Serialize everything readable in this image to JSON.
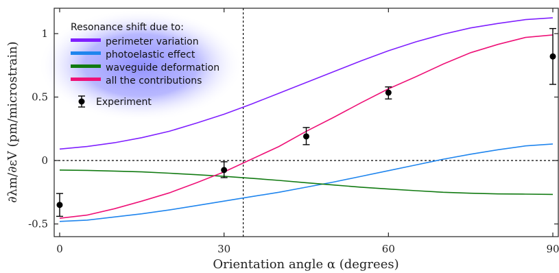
{
  "chart_data": {
    "type": "line",
    "xlabel": "Orientation angle α (degrees)",
    "ylabel": "∂λm/∂εV  (pm/microstrain)",
    "xlim": [
      -1,
      91
    ],
    "ylim": [
      -0.6,
      1.2
    ],
    "x_ticks": [
      0,
      30,
      60,
      90
    ],
    "x_tick_labels": [
      "0",
      "30",
      "60",
      "90"
    ],
    "y_ticks": [
      -0.5,
      0,
      0.5,
      1
    ],
    "y_tick_labels": [
      "-0.5",
      "0",
      "0.5",
      "1"
    ],
    "grid": false,
    "legend_position": "top-left",
    "legend_title": "Resonance shift due to:",
    "series": [
      {
        "name": "perimeter variation",
        "color": "#7f1fff",
        "x": [
          0,
          5,
          10,
          15,
          20,
          25,
          30,
          35,
          40,
          45,
          50,
          55,
          60,
          65,
          70,
          75,
          80,
          85,
          90
        ],
        "y": [
          0.09,
          0.11,
          0.14,
          0.18,
          0.23,
          0.295,
          0.365,
          0.445,
          0.53,
          0.615,
          0.7,
          0.785,
          0.865,
          0.935,
          0.995,
          1.045,
          1.08,
          1.11,
          1.125
        ]
      },
      {
        "name": "photoelastic effect",
        "color": "#1f85ee",
        "x": [
          0,
          5,
          10,
          15,
          20,
          25,
          30,
          35,
          40,
          45,
          50,
          55,
          60,
          65,
          70,
          75,
          80,
          85,
          90
        ],
        "y": [
          -0.48,
          -0.47,
          -0.445,
          -0.42,
          -0.39,
          -0.355,
          -0.32,
          -0.285,
          -0.25,
          -0.21,
          -0.17,
          -0.125,
          -0.08,
          -0.035,
          0.01,
          0.05,
          0.085,
          0.115,
          0.13
        ]
      },
      {
        "name": "waveguide deformation",
        "color": "#117a11",
        "x": [
          0,
          5,
          10,
          15,
          20,
          25,
          30,
          35,
          40,
          45,
          50,
          55,
          60,
          65,
          70,
          75,
          80,
          85,
          90
        ],
        "y": [
          -0.075,
          -0.078,
          -0.083,
          -0.09,
          -0.1,
          -0.112,
          -0.125,
          -0.14,
          -0.157,
          -0.175,
          -0.193,
          -0.21,
          -0.225,
          -0.238,
          -0.25,
          -0.258,
          -0.263,
          -0.265,
          -0.267
        ]
      },
      {
        "name": "all the contributions",
        "color": "#ee1177",
        "x": [
          0,
          5,
          10,
          15,
          20,
          25,
          30,
          35,
          40,
          45,
          50,
          55,
          60,
          65,
          70,
          75,
          80,
          85,
          90
        ],
        "y": [
          -0.455,
          -0.43,
          -0.38,
          -0.32,
          -0.255,
          -0.175,
          -0.09,
          0.01,
          0.11,
          0.23,
          0.34,
          0.455,
          0.565,
          0.66,
          0.76,
          0.85,
          0.915,
          0.97,
          0.99
        ]
      }
    ],
    "experiment": {
      "name": "Experiment",
      "color": "#000000",
      "x": [
        0,
        30,
        45,
        60,
        90
      ],
      "y": [
        -0.35,
        -0.075,
        0.19,
        0.535,
        0.82
      ],
      "err_low": [
        0.09,
        0.06,
        0.065,
        0.05,
        0.22
      ],
      "err_high": [
        0.09,
        0.065,
        0.07,
        0.045,
        0.22
      ]
    },
    "reference_lines": {
      "horizontal_y": 0,
      "vertical_x": 33.5
    }
  }
}
